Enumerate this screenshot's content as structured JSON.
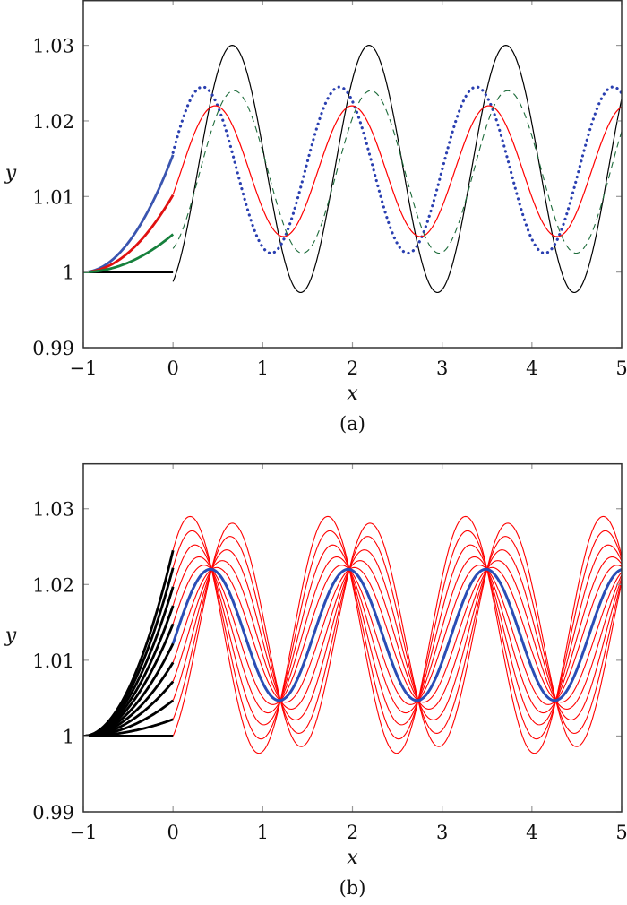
{
  "chart_data": [
    {
      "type": "line",
      "caption": "(a)",
      "xlabel": "x",
      "ylabel": "y",
      "xlim": [
        -1,
        5
      ],
      "ylim": [
        0.99,
        1.036
      ],
      "xticks": [
        "-1",
        "0",
        "1",
        "2",
        "3",
        "4",
        "5"
      ],
      "yticks": [
        "0.99",
        "1",
        "1.01",
        "1.02",
        "1.03"
      ],
      "grid": false,
      "legend": "none",
      "series": [
        {
          "color": "#000000",
          "style": "solid",
          "pre": {
            "x": [
              -1,
              0
            ],
            "y_start": 1.0,
            "y_end": 1.0
          },
          "post": {
            "x": [
              0,
              5
            ],
            "mean": 1.01365,
            "amplitude": 0.01635,
            "period": 1.525,
            "peak_x": 0.66
          }
        },
        {
          "color": "#2a3fb0",
          "style": "dotted",
          "pre_color": "#3a55b0",
          "pre": {
            "x": [
              -1,
              0
            ],
            "y_start": 1.0,
            "y_end": 1.0155
          },
          "post": {
            "x": [
              0,
              5
            ],
            "mean": 1.0135,
            "amplitude": 0.011,
            "period": 1.525,
            "peak_x": 0.33
          }
        },
        {
          "color": "#ff0000",
          "style": "solid",
          "pre_color": "#e01010",
          "pre": {
            "x": [
              -1,
              0
            ],
            "y_start": 1.0,
            "y_end": 1.0102
          },
          "post": {
            "x": [
              0,
              5
            ],
            "mean": 1.01335,
            "amplitude": 0.00865,
            "period": 1.525,
            "peak_x": 0.47
          }
        },
        {
          "color": "#1d6b3a",
          "style": "dashed",
          "pre_color": "#16803c",
          "pre": {
            "x": [
              -1,
              0
            ],
            "y_start": 1.0,
            "y_end": 1.005
          },
          "post": {
            "x": [
              0,
              5
            ],
            "mean": 1.01325,
            "amplitude": 0.01075,
            "period": 1.525,
            "peak_x": 0.68
          }
        }
      ]
    },
    {
      "type": "line",
      "caption": "(b)",
      "xlabel": "x",
      "ylabel": "y",
      "xlim": [
        -1,
        5
      ],
      "ylim": [
        0.99,
        1.036
      ],
      "xticks": [
        "-1",
        "0",
        "1",
        "2",
        "3",
        "4",
        "5"
      ],
      "yticks": [
        "0.99",
        "1",
        "1.01",
        "1.02",
        "1.03"
      ],
      "grid": false,
      "legend": "none",
      "family": {
        "pre_color": "#000000",
        "post_color": "#ff0000",
        "highlight_color": "#2a4db5",
        "highlight_index": 5,
        "initial_values_at_x0": [
          1.0245,
          1.0222,
          1.0197,
          1.0172,
          1.0148,
          1.0122,
          1.0097,
          1.0072,
          1.0047,
          1.0022,
          1.0
        ],
        "common_peak": {
          "x": 0.43,
          "y": 1.022
        },
        "common_trough": {
          "x": 1.2,
          "y": 1.0047
        },
        "period": 1.535
      }
    }
  ]
}
